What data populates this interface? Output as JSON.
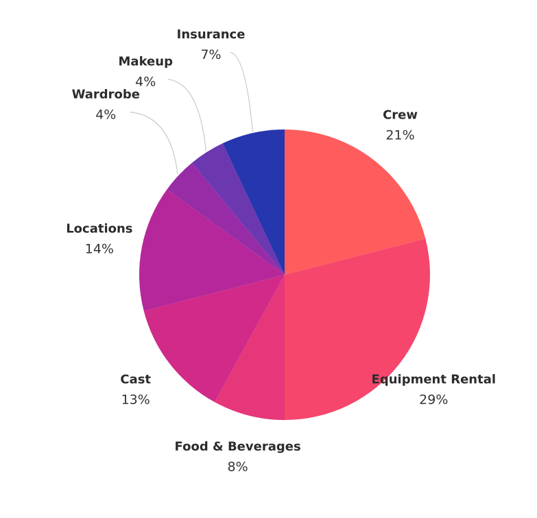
{
  "chart_data": {
    "type": "pie",
    "start_angle_deg": 0,
    "direction": "clockwise",
    "slices": [
      {
        "label": "Crew",
        "value": 21,
        "value_label": "21%",
        "color": "#ff5d5d"
      },
      {
        "label": "Equipment Rental",
        "value": 29,
        "value_label": "29%",
        "color": "#f6466c"
      },
      {
        "label": "Food & Beverages",
        "value": 8,
        "value_label": "8%",
        "color": "#e6377a"
      },
      {
        "label": "Cast",
        "value": 13,
        "value_label": "13%",
        "color": "#d12a89"
      },
      {
        "label": "Locations",
        "value": 14,
        "value_label": "14%",
        "color": "#b5279a"
      },
      {
        "label": "Wardrobe",
        "value": 4,
        "value_label": "4%",
        "color": "#982ca6"
      },
      {
        "label": "Makeup",
        "value": 4,
        "value_label": "4%",
        "color": "#6c38b0"
      },
      {
        "label": "Insurance",
        "value": 7,
        "value_label": "7%",
        "color": "#2636ae"
      }
    ]
  }
}
